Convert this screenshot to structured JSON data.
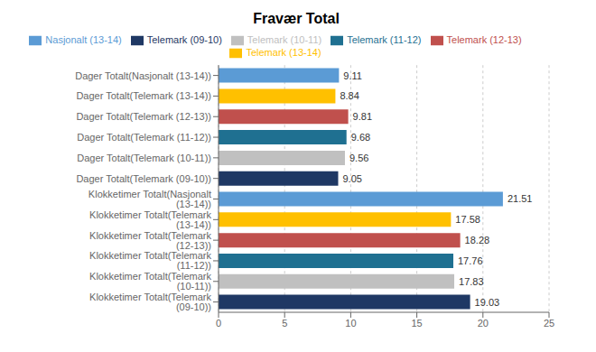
{
  "chart_data": {
    "type": "bar",
    "title": "Fravær Total",
    "orientation": "horizontal",
    "stacked": true,
    "categories": [
      "Dager Totalt(Nasjonalt (13-14))",
      "Dager Totalt(Telemark (13-14))",
      "Dager Totalt(Telemark (12-13))",
      "Dager Totalt(Telemark (11-12))",
      "Dager Totalt(Telemark (10-11))",
      "Dager Totalt(Telemark (09-10))",
      "Klokketimer Totalt(Nasjonalt (13-14))",
      "Klokketimer Totalt(Telemark (13-14))",
      "Klokketimer Totalt(Telemark (12-13))",
      "Klokketimer Totalt(Telemark (11-12))",
      "Klokketimer Totalt(Telemark (10-11))",
      "Klokketimer Totalt(Telemark (09-10))"
    ],
    "series": [
      {
        "name": "Nasjonalt (13-14)",
        "color": "#5B9BD5",
        "values": [
          9.11,
          null,
          null,
          null,
          null,
          null,
          21.51,
          null,
          null,
          null,
          null,
          null
        ]
      },
      {
        "name": "Telemark (12-13)",
        "color": "#C0504D",
        "values": [
          null,
          null,
          9.81,
          null,
          null,
          null,
          null,
          null,
          18.28,
          null,
          null,
          null
        ]
      },
      {
        "name": "Telemark (11-12)",
        "color": "#1F7091",
        "values": [
          null,
          null,
          null,
          9.68,
          null,
          null,
          null,
          null,
          null,
          17.76,
          null,
          null
        ]
      },
      {
        "name": "Telemark (10-11)",
        "color": "#C0C0C0",
        "values": [
          null,
          null,
          null,
          null,
          9.56,
          null,
          null,
          null,
          null,
          null,
          17.83,
          null
        ]
      },
      {
        "name": "Telemark (09-10)",
        "color": "#1F3864",
        "values": [
          null,
          null,
          null,
          null,
          null,
          9.05,
          null,
          null,
          null,
          null,
          null,
          19.03
        ]
      },
      {
        "name": "Telemark (13-14)",
        "color": "#FFC000",
        "values": [
          null,
          8.84,
          null,
          null,
          null,
          null,
          null,
          17.58,
          null,
          null,
          null,
          null
        ]
      }
    ],
    "xlim": [
      0,
      25
    ],
    "xticks": [
      0,
      5,
      10,
      15,
      20,
      25
    ],
    "grid": true,
    "data_labels": true
  }
}
